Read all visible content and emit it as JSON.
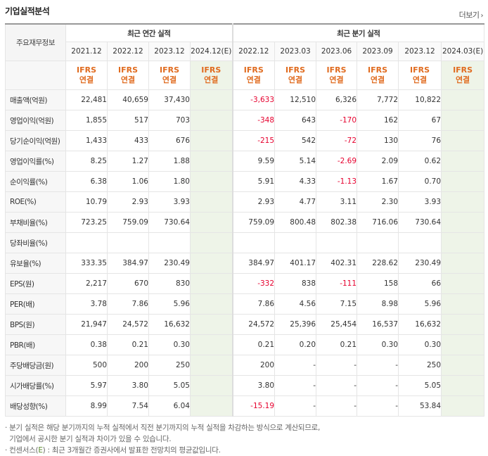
{
  "section": {
    "title": "기업실적분석",
    "more_label": "더보기",
    "more_icon": "chevron-right-icon"
  },
  "header": {
    "row_label": "주요재무정보",
    "annual_group": "최근 연간 실적",
    "quarter_group": "최근 분기 실적",
    "annual_periods": [
      "2021.12",
      "2022.12",
      "2023.12",
      "2024.12(E)"
    ],
    "quarter_periods": [
      "2022.12",
      "2023.03",
      "2023.06",
      "2023.09",
      "2023.12",
      "2024.03(E)"
    ],
    "ifrs_line1": "IFRS",
    "ifrs_line2": "연결"
  },
  "colors": {
    "accent_orange": "#e06b1f",
    "negative_red": "#e6002e",
    "estimate_bg": "#eef4e8"
  },
  "rows": [
    {
      "label": "매출액(억원)",
      "annual": [
        "22,481",
        "40,659",
        "37,430",
        ""
      ],
      "quarter": [
        "-3,633",
        "12,510",
        "6,326",
        "7,772",
        "10,822",
        ""
      ]
    },
    {
      "label": "영업이익(억원)",
      "annual": [
        "1,855",
        "517",
        "703",
        ""
      ],
      "quarter": [
        "-348",
        "643",
        "-170",
        "162",
        "67",
        ""
      ]
    },
    {
      "label": "당기순이익(억원)",
      "annual": [
        "1,433",
        "433",
        "676",
        ""
      ],
      "quarter": [
        "-215",
        "542",
        "-72",
        "130",
        "76",
        ""
      ]
    },
    {
      "label": "영업이익률(%)",
      "annual": [
        "8.25",
        "1.27",
        "1.88",
        ""
      ],
      "quarter": [
        "9.59",
        "5.14",
        "-2.69",
        "2.09",
        "0.62",
        ""
      ]
    },
    {
      "label": "순이익률(%)",
      "annual": [
        "6.38",
        "1.06",
        "1.80",
        ""
      ],
      "quarter": [
        "5.91",
        "4.33",
        "-1.13",
        "1.67",
        "0.70",
        ""
      ]
    },
    {
      "label": "ROE(%)",
      "annual": [
        "10.79",
        "2.93",
        "3.93",
        ""
      ],
      "quarter": [
        "2.93",
        "4.77",
        "3.11",
        "2.30",
        "3.93",
        ""
      ]
    },
    {
      "label": "부채비율(%)",
      "annual": [
        "723.25",
        "759.09",
        "730.64",
        ""
      ],
      "quarter": [
        "759.09",
        "800.48",
        "802.38",
        "716.06",
        "730.64",
        ""
      ]
    },
    {
      "label": "당좌비율(%)",
      "annual": [
        "",
        "",
        "",
        ""
      ],
      "quarter": [
        "",
        "",
        "",
        "",
        "",
        ""
      ]
    },
    {
      "label": "유보율(%)",
      "annual": [
        "333.35",
        "384.97",
        "230.49",
        ""
      ],
      "quarter": [
        "384.97",
        "401.17",
        "402.31",
        "228.62",
        "230.49",
        ""
      ]
    },
    {
      "label": "EPS(원)",
      "annual": [
        "2,217",
        "670",
        "830",
        ""
      ],
      "quarter": [
        "-332",
        "838",
        "-111",
        "158",
        "66",
        ""
      ]
    },
    {
      "label": "PER(배)",
      "annual": [
        "3.78",
        "7.86",
        "5.96",
        ""
      ],
      "quarter": [
        "7.86",
        "4.56",
        "7.15",
        "8.98",
        "5.96",
        ""
      ]
    },
    {
      "label": "BPS(원)",
      "annual": [
        "21,947",
        "24,572",
        "16,632",
        ""
      ],
      "quarter": [
        "24,572",
        "25,396",
        "25,454",
        "16,537",
        "16,632",
        ""
      ]
    },
    {
      "label": "PBR(배)",
      "annual": [
        "0.38",
        "0.21",
        "0.30",
        ""
      ],
      "quarter": [
        "0.21",
        "0.20",
        "0.21",
        "0.30",
        "0.30",
        ""
      ]
    },
    {
      "label": "주당배당금(원)",
      "annual": [
        "500",
        "200",
        "250",
        ""
      ],
      "quarter": [
        "200",
        "-",
        "-",
        "-",
        "250",
        ""
      ]
    },
    {
      "label": "시가배당률(%)",
      "annual": [
        "5.97",
        "3.80",
        "5.05",
        ""
      ],
      "quarter": [
        "3.80",
        "-",
        "-",
        "-",
        "5.05",
        ""
      ]
    },
    {
      "label": "배당성향(%)",
      "annual": [
        "8.99",
        "7.54",
        "6.04",
        ""
      ],
      "quarter": [
        "-15.19",
        "-",
        "-",
        "-",
        "53.84",
        ""
      ]
    }
  ],
  "notes": {
    "line1": "· 분기 실적은 해당 분기까지의 누적 실적에서 직전 분기까지의 누적 실적을 차감하는 방식으로 계산되므로,",
    "line2": "  기업에서 공시한 분기 실적과 차이가 있을 수 있습니다.",
    "line3_prefix": "· 컨센서스(",
    "line3_e": "E",
    "line3_suffix": ") : 최근 3개월간 증권사에서 발표한 전망치의 평균값입니다."
  }
}
